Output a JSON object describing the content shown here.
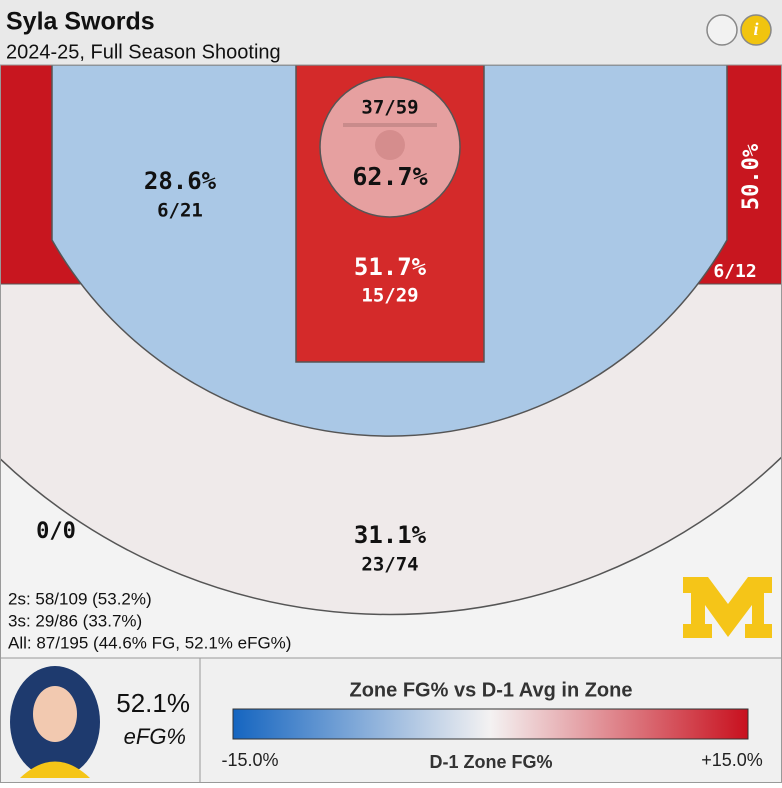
{
  "header": {
    "name": "Syla Swords",
    "subtitle": "2024-25, Full Season Shooting"
  },
  "zones": {
    "rim": {
      "pct": "62.7%",
      "fraction": "37/59"
    },
    "paint": {
      "pct": "51.7%",
      "fraction": "15/29"
    },
    "midrange": {
      "pct": "28.6%",
      "fraction": "6/21"
    },
    "right_corner": {
      "pct": "50.0%",
      "fraction": "6/12"
    },
    "above_break": {
      "pct": "31.1%",
      "fraction": "23/74"
    },
    "deep": {
      "fraction": "0/0"
    }
  },
  "summary": [
    "2s: 58/109 (53.2%)",
    "3s: 29/86 (33.7%)",
    "All: 87/195 (44.6% FG, 52.1% eFG%)"
  ],
  "player": {
    "efg": "52.1%",
    "label": "eFG%"
  },
  "legend": {
    "title": "Zone FG% vs D-1 Avg in Zone",
    "min": "-15.0%",
    "max": "+15.0%",
    "axis": "D-1 Zone FG%"
  }
}
